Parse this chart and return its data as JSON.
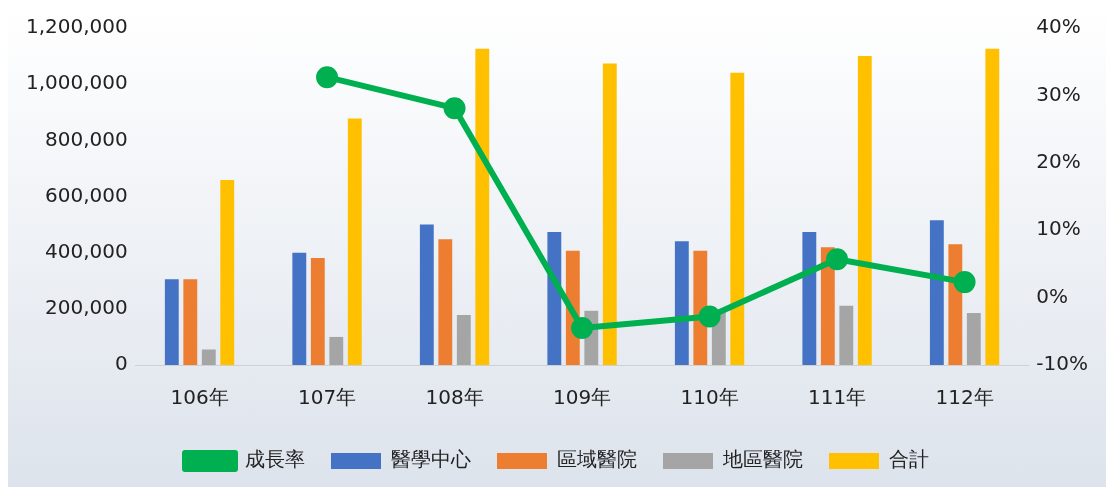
{
  "chart_data": {
    "type": "bar",
    "categories": [
      "106年",
      "107年",
      "108年",
      "109年",
      "110年",
      "111年",
      "112年"
    ],
    "series": [
      {
        "name": "醫學中心",
        "color": "#4472c4",
        "values": [
          305000,
          400000,
          500000,
          474000,
          441000,
          474000,
          515000
        ]
      },
      {
        "name": "區域醫院",
        "color": "#ed7d31",
        "values": [
          305000,
          381000,
          448000,
          407000,
          407000,
          419000,
          430000
        ]
      },
      {
        "name": "地區醫院",
        "color": "#a5a5a5",
        "values": [
          55000,
          100000,
          178000,
          193000,
          190000,
          211000,
          185000
        ]
      },
      {
        "name": "合計",
        "color": "#ffc000",
        "values": [
          659000,
          878000,
          1126000,
          1074000,
          1041000,
          1100000,
          1126000
        ]
      },
      {
        "name": "成長率",
        "type": "line",
        "axis": "y2",
        "color": "#00b050",
        "marker": "circle",
        "values": [
          null,
          32.7,
          28.1,
          -4.5,
          -2.8,
          5.7,
          2.3
        ]
      }
    ],
    "ylim": [
      0,
      1200000
    ],
    "yticks": [
      {
        "value": 0,
        "label": "0"
      },
      {
        "value": 200000,
        "label": "200,000"
      },
      {
        "value": 400000,
        "label": "400,000"
      },
      {
        "value": 600000,
        "label": "600,000"
      },
      {
        "value": 800000,
        "label": "800,000"
      },
      {
        "value": 1000000,
        "label": "1,000,000"
      },
      {
        "value": 1200000,
        "label": "1,200,000"
      }
    ],
    "y2lim": [
      -10,
      40
    ],
    "y2ticks": [
      {
        "value": -10,
        "label": "-10%"
      },
      {
        "value": 0,
        "label": "0%"
      },
      {
        "value": 10,
        "label": "10%"
      },
      {
        "value": 20,
        "label": "20%"
      },
      {
        "value": 30,
        "label": "30%"
      },
      {
        "value": 40,
        "label": "40%"
      }
    ],
    "legend": "bottom"
  }
}
